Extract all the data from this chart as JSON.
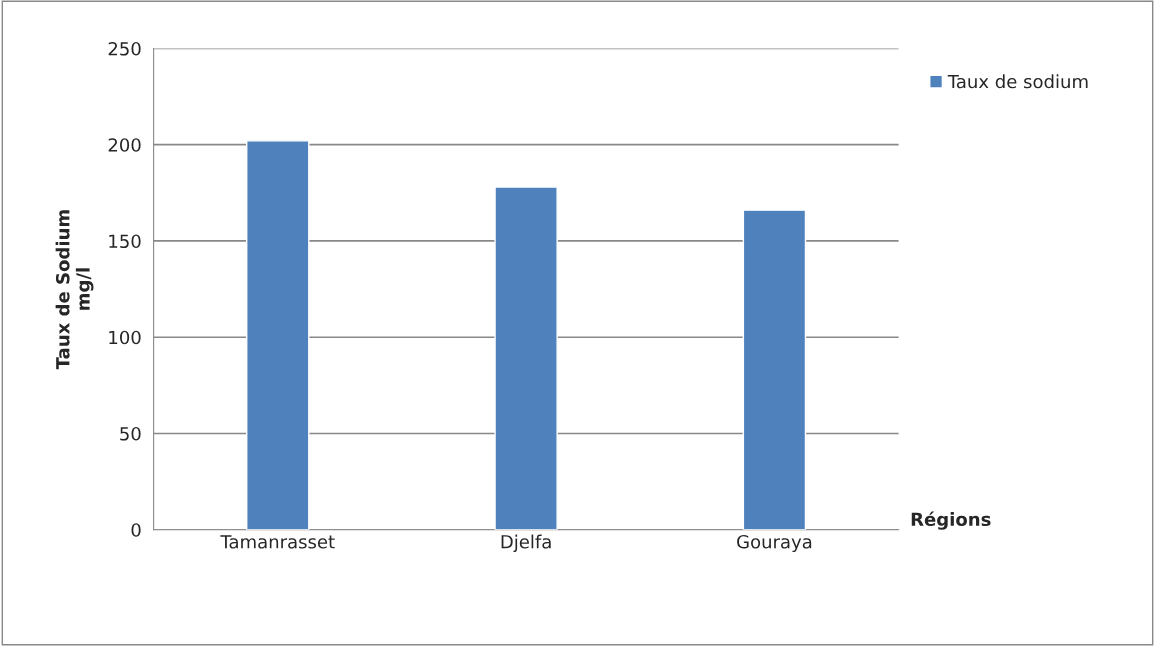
{
  "chart_data": {
    "type": "bar",
    "categories": [
      "Tamanrasset",
      "Djelfa",
      "Gouraya"
    ],
    "series": [
      {
        "name": "Taux de sodium",
        "color": "#4f81bd",
        "values": [
          202,
          178,
          166
        ]
      }
    ],
    "ylabel": "Taux de Sodium\nmg/l",
    "xlabel": "Régions",
    "ylim": [
      0,
      250
    ],
    "yticks": [
      0,
      50,
      100,
      150,
      200,
      250
    ],
    "grid": "y",
    "legend": "right"
  }
}
